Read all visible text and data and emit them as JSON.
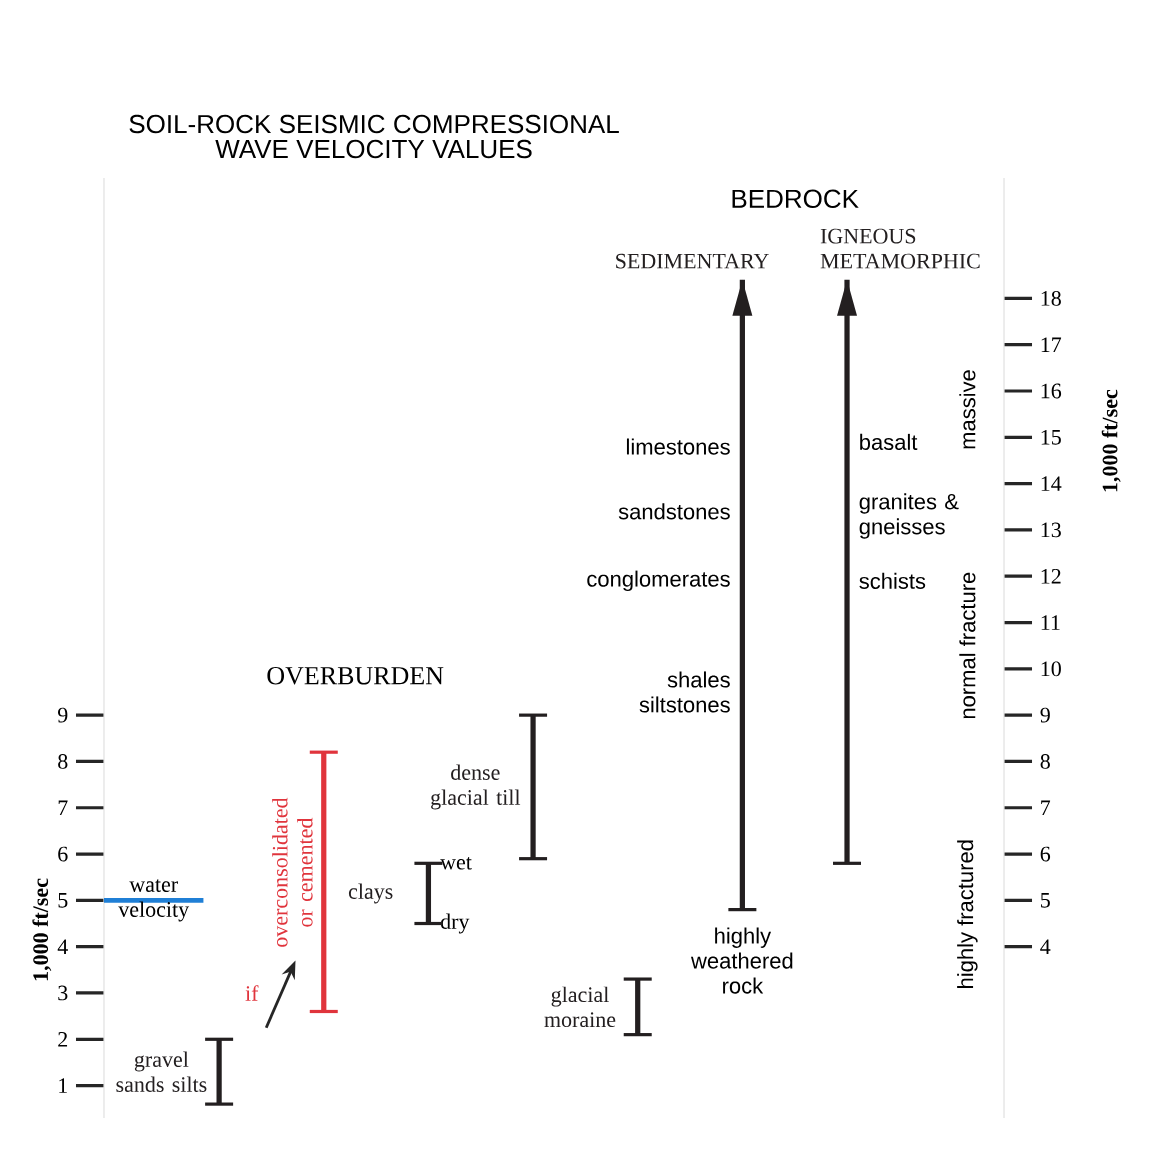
{
  "chart_data": {
    "type": "bar",
    "title": "SOIL-ROCK SEISMIC COMPRESSIONAL WAVE VELOCITY VALUES",
    "categories": [
      null,
      null,
      null,
      null,
      null,
      null,
      null
    ],
    "base": [
      0.6,
      2.6,
      4.5,
      5.9,
      2.1,
      4.8,
      5.8
    ],
    "values": [
      1.4,
      5.6,
      1.3,
      3.1,
      1.2,
      13.6,
      12.6
    ],
    "colors": [
      "#231f20",
      "#e0343c",
      "#231f20",
      "#231f20",
      "#231f20",
      "#231f20",
      "#231f20"
    ],
    "ylabel": "1,000 ft/sec",
    "y2label": "1,000 ft/sec",
    "ylim": [
      0.3,
      20.6
    ],
    "yticks": [
      1,
      2,
      3,
      4,
      5,
      6,
      7,
      8,
      9
    ],
    "y2lim": [
      0.3,
      20.6
    ],
    "y2ticks": [
      4,
      5,
      6,
      7,
      8,
      9,
      10,
      11,
      12,
      13,
      14,
      15,
      16,
      17,
      18
    ],
    "ref_lines": [
      {
        "axis": "y",
        "value": 5,
        "label": "water velocity",
        "color": "#1f7fd6"
      }
    ],
    "annotations": [
      "gravel sands silts",
      "overconsolidated or cemented",
      "clays",
      "dense glacial till",
      "glacial moraine",
      "SEDIMENTARY",
      "IGNEOUS METAMORPHIC",
      "OVERBURDEN",
      "BEDROCK",
      "if",
      "wet",
      "dry",
      "limestones",
      "sandstones",
      "conglomerates",
      "shales siltstones",
      "highly weathered rock",
      "basalt",
      "granites & gneisses",
      "schists",
      "massive",
      "normal fracture",
      "highly fractured"
    ]
  }
}
